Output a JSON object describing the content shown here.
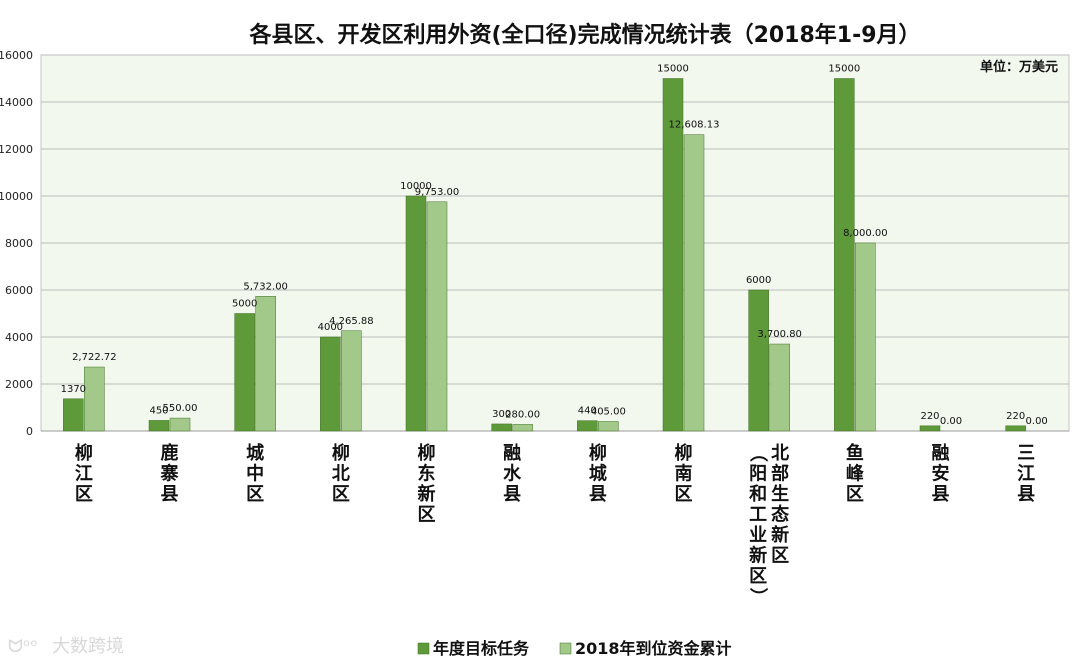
{
  "chart_data": {
    "type": "bar",
    "title": "各县区、开发区利用外资(全口径)完成情况统计表（2018年1-9月）",
    "unit_note": "单位：万美元",
    "ylim": [
      0,
      16000
    ],
    "yticks": [
      "0",
      "2000",
      "4000",
      "6000",
      "8000",
      "10000",
      "12000",
      "14000",
      "16000"
    ],
    "ytick_values": [
      0,
      2000,
      4000,
      6000,
      8000,
      10000,
      12000,
      14000,
      16000
    ],
    "grid": true,
    "legend_position": "bottom",
    "categories": [
      "柳江区",
      "鹿寨县",
      "城中区",
      "柳北区",
      "柳东新区",
      "融水县",
      "柳城县",
      "柳南区",
      "北部生态新区（阳和工业新区）",
      "鱼峰区",
      "融安县",
      "三江县"
    ],
    "category_lines": [
      [
        "柳江区"
      ],
      [
        "鹿寨县"
      ],
      [
        "城中区"
      ],
      [
        "柳北区"
      ],
      [
        "柳东新区"
      ],
      [
        "融水县"
      ],
      [
        "柳城县"
      ],
      [
        "柳南区"
      ],
      [
        "北部生态新区",
        "（阳和工业新区）"
      ],
      [
        "鱼峰区"
      ],
      [
        "融安县"
      ],
      [
        "三江县"
      ]
    ],
    "series": [
      {
        "name": "年度目标任务",
        "color": "#5f9a3a",
        "values": [
          1370,
          450,
          5000,
          4000,
          10000,
          300,
          440,
          15000,
          6000,
          15000,
          220,
          220
        ],
        "labels": [
          "1370",
          "450",
          "5000",
          "4000",
          "10000",
          "300",
          "440",
          "15000",
          "6000",
          "15000",
          "220",
          "220"
        ]
      },
      {
        "name": "2018年到位资金累计",
        "color": "#a3c98a",
        "values": [
          2722.72,
          550.0,
          5732.0,
          4265.88,
          9753.0,
          280.0,
          405.0,
          12608.13,
          3700.8,
          8000.0,
          0.0,
          0.0
        ],
        "labels": [
          "2,722.72",
          "550.00",
          "5,732.00",
          "4,265.88",
          "9,753.00",
          "280.00",
          "405.00",
          "12,608.13",
          "3,700.80",
          "8,000.00",
          "0.00",
          "0.00"
        ]
      }
    ]
  },
  "watermark": "大数跨境"
}
